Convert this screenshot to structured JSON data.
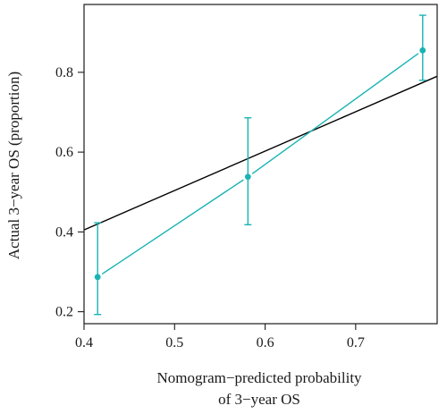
{
  "chart_data": {
    "type": "scatter",
    "xlabel_lines": [
      "Nomogram−predicted probability",
      "of 3−year OS"
    ],
    "ylabel": "Actual 3−year OS (proportion)",
    "xlim": [
      0.4,
      0.79
    ],
    "ylim": [
      0.17,
      0.97
    ],
    "x_ticks": [
      0.4,
      0.5,
      0.6,
      0.7
    ],
    "x_tick_labels": [
      "0.4",
      "0.5",
      "0.6",
      "0.7"
    ],
    "y_ticks": [
      0.2,
      0.4,
      0.6,
      0.8
    ],
    "y_tick_labels": [
      "0.2",
      "0.4",
      "0.6",
      "0.8"
    ],
    "series": [
      {
        "kind": "calibration",
        "color": "#1ab3b3",
        "points": [
          {
            "x": 0.415,
            "y": 0.287,
            "lower": 0.193,
            "upper": 0.423
          },
          {
            "x": 0.581,
            "y": 0.538,
            "lower": 0.418,
            "upper": 0.686
          },
          {
            "x": 0.774,
            "y": 0.855,
            "lower": 0.78,
            "upper": 0.943
          }
        ]
      },
      {
        "kind": "reference",
        "color": "#000000",
        "line": [
          {
            "x": 0.4,
            "y": 0.405
          },
          {
            "x": 0.79,
            "y": 0.79
          }
        ]
      }
    ]
  }
}
